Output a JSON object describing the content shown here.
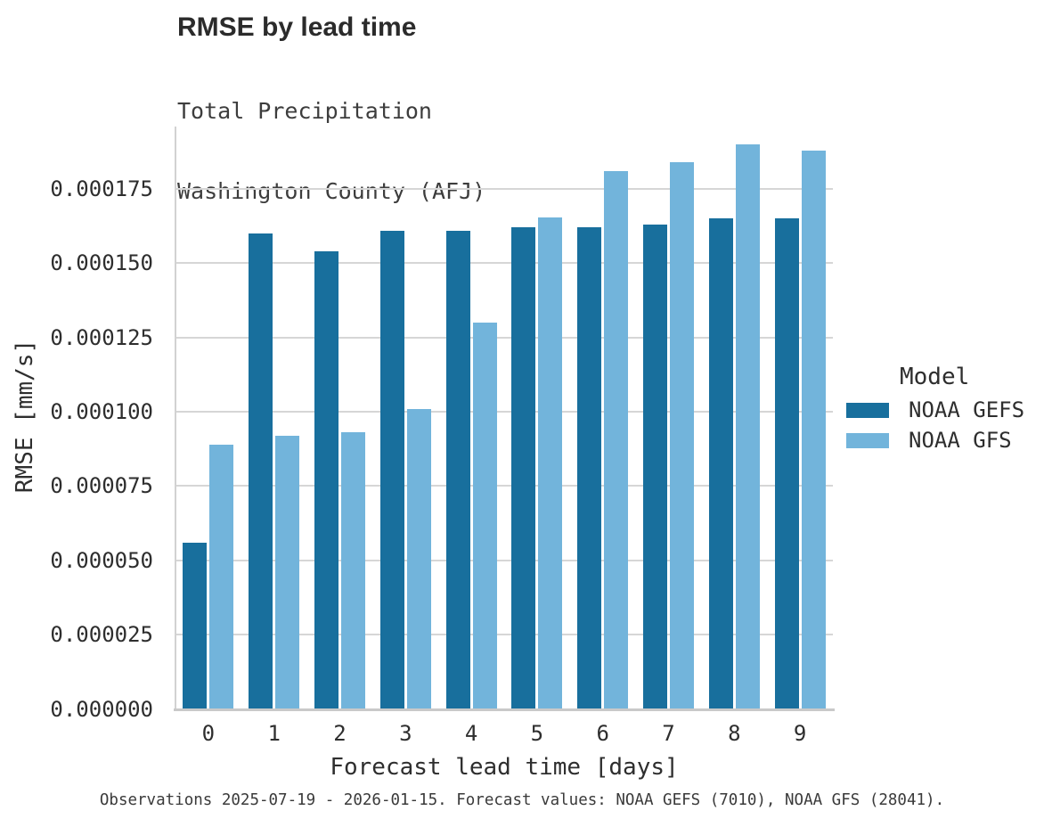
{
  "header": {
    "title": "RMSE by lead time",
    "subtitle_line1": "Total Precipitation",
    "subtitle_line2": "Washington County (AFJ)"
  },
  "caption": "Observations 2025-07-19 - 2026-01-15. Forecast values: NOAA GEFS (7010), NOAA GFS (28041).",
  "legend": {
    "title": "Model",
    "entries": [
      {
        "label": "NOAA GEFS",
        "color": "#186f9d"
      },
      {
        "label": "NOAA GFS",
        "color": "#72b4db"
      }
    ]
  },
  "colors": {
    "gefs_bar": "#186f9d",
    "gfs_bar": "#72b4db",
    "gridline": "#d6d6d6",
    "axis_line": "#c9c9c9",
    "text": "#2e2e2e"
  },
  "chart_data": {
    "type": "bar",
    "title": "RMSE by lead time",
    "subtitle": [
      "Total Precipitation",
      "Washington County (AFJ)"
    ],
    "xlabel": "Forecast lead time [days]",
    "ylabel": "RMSE [mm/s]",
    "categories": [
      "0",
      "1",
      "2",
      "3",
      "4",
      "5",
      "6",
      "7",
      "8",
      "9"
    ],
    "series": [
      {
        "name": "NOAA GEFS",
        "color": "#186f9d",
        "values": [
          5.6e-05,
          0.00016,
          0.000154,
          0.000161,
          0.000161,
          0.000162,
          0.000162,
          0.000163,
          0.000165,
          0.000165
        ]
      },
      {
        "name": "NOAA GFS",
        "color": "#72b4db",
        "values": [
          8.9e-05,
          9.2e-05,
          9.3e-05,
          0.000101,
          0.00013,
          0.0001655,
          0.000181,
          0.000184,
          0.00019,
          0.000188
        ]
      }
    ],
    "ylim": [
      0,
      0.000196
    ],
    "yticks": [
      0.0,
      2.5e-05,
      5e-05,
      7.5e-05,
      0.0001,
      0.000125,
      0.00015,
      0.000175
    ],
    "ytick_decimals": 6,
    "grid": true,
    "legend_title": "Model",
    "legend_position": "right"
  }
}
